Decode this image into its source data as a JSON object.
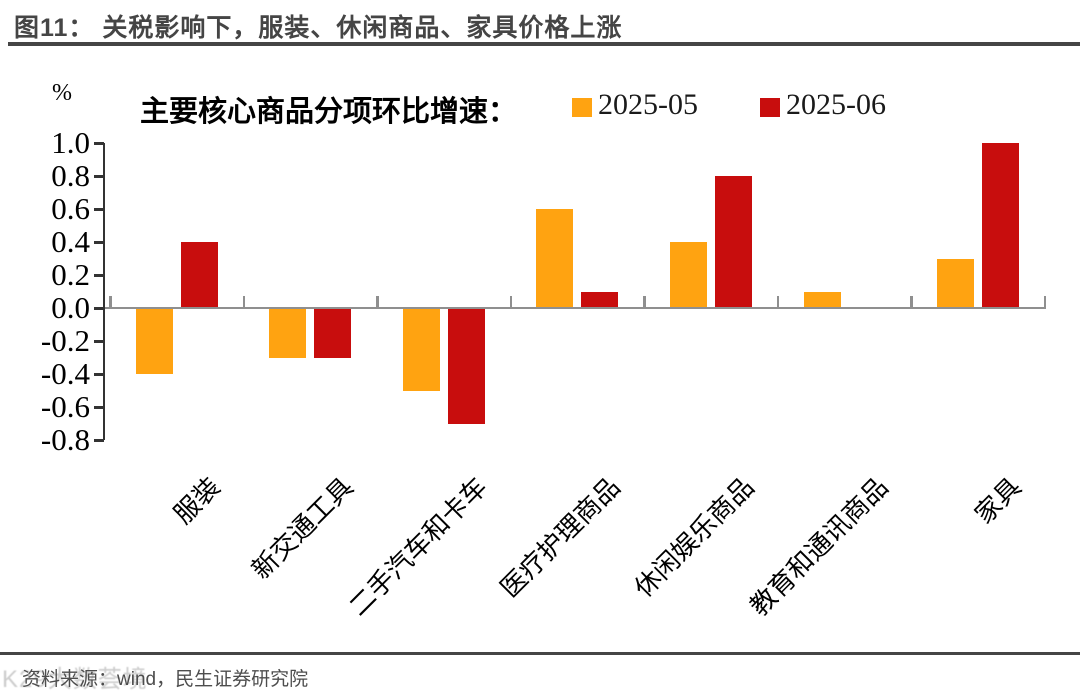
{
  "page": {
    "figure_title": "图11： 关税影响下，服装、休闲商品、家具价格上涨",
    "source_note": "资料来源：wind，民生证券研究院",
    "watermark": "K29大数荟境"
  },
  "chart_data": {
    "type": "bar",
    "title": "主要核心商品分项环比增速：",
    "unit_label": "%",
    "categories": [
      "服装",
      "新交通工具",
      "二手汽车和卡车",
      "医疗护理商品",
      "休闲娱乐商品",
      "教育和通讯商品",
      "家具"
    ],
    "series": [
      {
        "name": "2025-05",
        "color": "#FFA311",
        "values": [
          -0.4,
          -0.3,
          -0.5,
          0.6,
          0.4,
          0.1,
          0.3
        ]
      },
      {
        "name": "2025-06",
        "color": "#C80D0D",
        "values": [
          0.4,
          -0.3,
          -0.7,
          0.1,
          0.8,
          0,
          1.0
        ]
      }
    ],
    "ylim": [
      -0.8,
      1.0
    ],
    "yticks": [
      "1.0",
      "0.8",
      "0.6",
      "0.4",
      "0.2",
      "0.0",
      "-0.2",
      "-0.4",
      "-0.6",
      "-0.8"
    ],
    "ytick_step": 0.2,
    "grid": false,
    "legend_position": "top",
    "axis_color": "#333333",
    "zero_line_color": "#8f8f8f"
  }
}
